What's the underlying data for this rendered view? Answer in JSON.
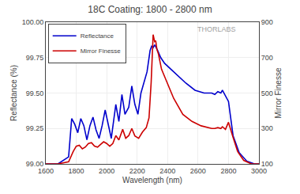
{
  "chart_data": {
    "type": "line",
    "title": "18C Coating: 1800 - 2800 nm",
    "xlabel": "Wavelength (nm)",
    "ylabel": "Reflectance (%)",
    "y2label": "Mirror Finesse",
    "xlim": [
      1600,
      3000
    ],
    "ylim": [
      99.0,
      100.0
    ],
    "y2lim": [
      100,
      900
    ],
    "xticks": [
      1600,
      1800,
      2000,
      2200,
      2400,
      2600,
      2800,
      3000
    ],
    "yticks": [
      {
        "value": 99.0,
        "label": "99.00"
      },
      99.25,
      {
        "value": 99.5,
        "label": "99.50"
      },
      99.75,
      {
        "value": 100.0,
        "label": "100.00"
      }
    ],
    "y2ticks": [
      100,
      300,
      500,
      700,
      900
    ],
    "grid": true,
    "legend": "upper left",
    "annotations": [
      "THORLABS"
    ],
    "series": [
      {
        "name": "Reflectance",
        "color": "#0000cc",
        "axis": "y",
        "x": [
          1600,
          1680,
          1750,
          1770,
          1790,
          1810,
          1830,
          1850,
          1870,
          1890,
          1910,
          1930,
          1950,
          1970,
          1990,
          2010,
          2030,
          2060,
          2080,
          2100,
          2120,
          2145,
          2165,
          2185,
          2205,
          2225,
          2245,
          2265,
          2285,
          2295,
          2305,
          2315,
          2325,
          2335,
          2355,
          2380,
          2420,
          2470,
          2520,
          2580,
          2640,
          2690,
          2710,
          2730,
          2750,
          2760,
          2770,
          2780,
          2800,
          2830,
          2870,
          2920,
          2970,
          3000
        ],
        "values": [
          99.0,
          99.0,
          99.05,
          99.32,
          99.28,
          99.22,
          99.32,
          99.27,
          99.17,
          99.27,
          99.33,
          99.24,
          99.18,
          99.27,
          99.38,
          99.27,
          99.18,
          99.42,
          99.3,
          99.49,
          99.35,
          99.4,
          99.55,
          99.42,
          99.35,
          99.5,
          99.57,
          99.65,
          99.8,
          99.83,
          99.82,
          99.84,
          99.82,
          99.8,
          99.75,
          99.71,
          99.67,
          99.62,
          99.57,
          99.52,
          99.5,
          99.5,
          99.49,
          99.51,
          99.5,
          99.52,
          99.5,
          99.48,
          99.44,
          99.2,
          99.08,
          99.02,
          99.0,
          99.0
        ]
      },
      {
        "name": "Mirror Finesse",
        "color": "#cc0000",
        "axis": "y2",
        "x": [
          1600,
          1680,
          1750,
          1780,
          1800,
          1820,
          1840,
          1860,
          1880,
          1900,
          1920,
          1940,
          1960,
          1980,
          2000,
          2020,
          2040,
          2060,
          2080,
          2105,
          2125,
          2145,
          2165,
          2185,
          2210,
          2235,
          2260,
          2278,
          2292,
          2305,
          2315,
          2322,
          2330,
          2340,
          2360,
          2390,
          2440,
          2500,
          2560,
          2620,
          2660,
          2690,
          2710,
          2730,
          2750,
          2760,
          2780,
          2800,
          2830,
          2860,
          2900,
          2950,
          3000
        ],
        "values": [
          100,
          100,
          112,
          170,
          200,
          205,
          185,
          195,
          215,
          220,
          200,
          195,
          210,
          225,
          215,
          200,
          215,
          260,
          235,
          295,
          245,
          260,
          300,
          258,
          245,
          280,
          305,
          360,
          560,
          830,
          790,
          795,
          745,
          720,
          635,
          570,
          470,
          380,
          340,
          315,
          305,
          300,
          300,
          305,
          300,
          310,
          295,
          335,
          250,
          170,
          120,
          100,
          100
        ]
      }
    ]
  }
}
